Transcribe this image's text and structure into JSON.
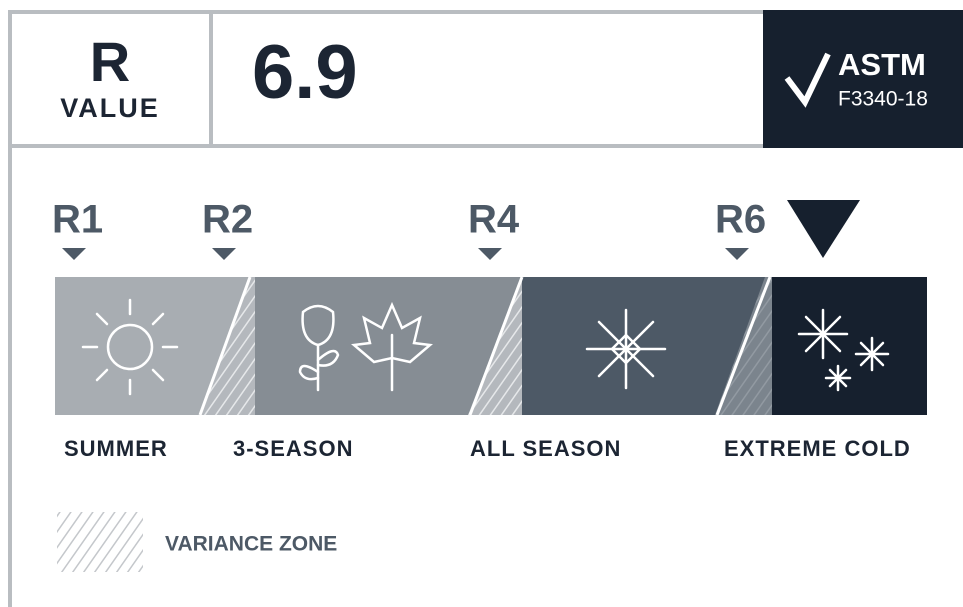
{
  "header": {
    "label_big": "R",
    "label_small": "VALUE",
    "value": "6.9",
    "badge": {
      "title": "ASTM",
      "code": "F3340-18"
    }
  },
  "scale": {
    "markers": [
      "R1",
      "R2",
      "R4",
      "R6"
    ],
    "zones": [
      "SUMMER",
      "3-SEASON",
      "ALL SEASON",
      "EXTREME COLD"
    ]
  },
  "legend": {
    "label": "VARIANCE ZONE"
  }
}
